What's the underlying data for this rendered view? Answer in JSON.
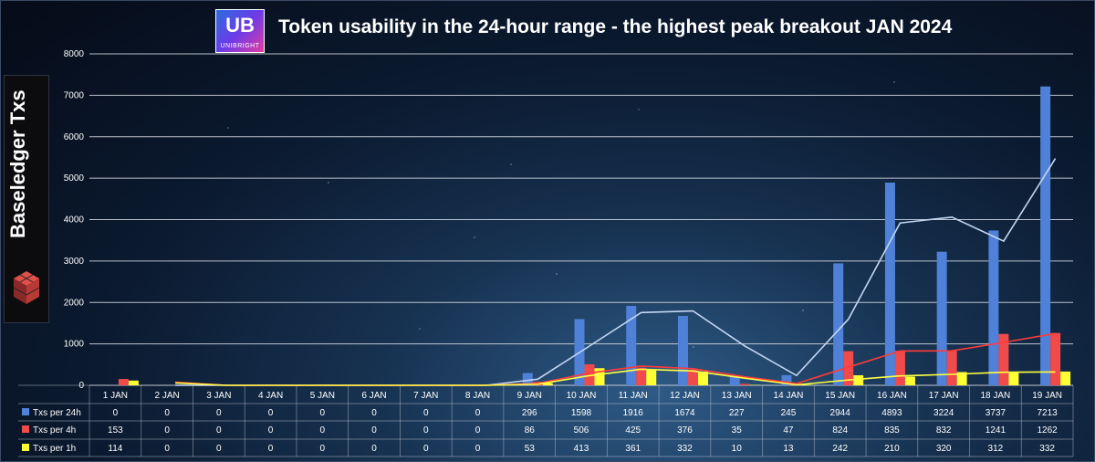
{
  "header": {
    "logo_mark": "UB",
    "logo_text": "UNIBRIGHT",
    "title": "Token usability in the 24-hour range - the highest peak breakout JAN 2024"
  },
  "sidebar": {
    "label": "Baseledger Txs"
  },
  "chart_data": {
    "type": "bar",
    "categories": [
      "1 JAN",
      "2 JAN",
      "3 JAN",
      "4 JAN",
      "5 JAN",
      "6 JAN",
      "7 JAN",
      "8 JAN",
      "9 JAN",
      "10 JAN",
      "11 JAN",
      "12 JAN",
      "13 JAN",
      "14 JAN",
      "15 JAN",
      "16 JAN",
      "17 JAN",
      "18 JAN",
      "19 JAN"
    ],
    "ylim": [
      0,
      8000
    ],
    "yticks": [
      0,
      1000,
      2000,
      3000,
      4000,
      5000,
      6000,
      7000,
      8000
    ],
    "grid": true,
    "series": [
      {
        "name": "Txs per 24h",
        "color": "#4f81d8",
        "values": [
          0,
          0,
          0,
          0,
          0,
          0,
          0,
          0,
          296,
          1598,
          1916,
          1674,
          227,
          245,
          2944,
          4893,
          3224,
          3737,
          7213
        ]
      },
      {
        "name": "Txs per 4h",
        "color": "#f04a4a",
        "values": [
          153,
          0,
          0,
          0,
          0,
          0,
          0,
          0,
          86,
          506,
          425,
          376,
          35,
          47,
          824,
          835,
          832,
          1241,
          1262
        ]
      },
      {
        "name": "Txs per 1h",
        "color": "#ffff33",
        "values": [
          114,
          0,
          0,
          0,
          0,
          0,
          0,
          0,
          53,
          413,
          361,
          332,
          10,
          13,
          242,
          210,
          320,
          312,
          332
        ]
      }
    ],
    "data_table": true
  }
}
